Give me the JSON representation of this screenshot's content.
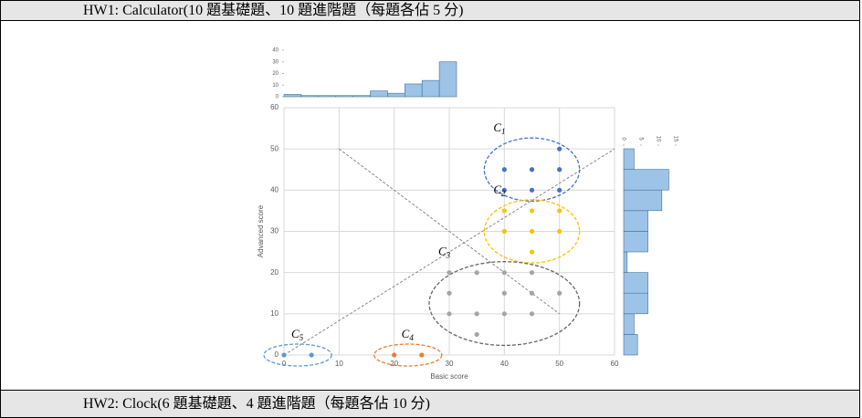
{
  "rows": [
    "HW1: Calculator(10 題基礎題、10 題進階題（每題各佔 5 分)",
    "HW2: Clock(6 題基礎題、4 題進階題（每題各佔 10 分)"
  ],
  "chart_data": {
    "type": "scatter",
    "xlabel": "Basic score",
    "ylabel": "Advanced score",
    "xlim": [
      0,
      60
    ],
    "ylim": [
      0,
      60
    ],
    "xticks": [
      0,
      10,
      20,
      30,
      40,
      50,
      60
    ],
    "yticks": [
      0,
      10,
      20,
      30,
      40,
      50,
      60
    ],
    "grid": true,
    "clusters": [
      {
        "name": "C",
        "sub": "1",
        "color": "#4472c4",
        "points": [
          [
            50,
            50
          ],
          [
            40,
            45
          ],
          [
            45,
            45
          ],
          [
            50,
            45
          ],
          [
            40,
            40
          ],
          [
            45,
            40
          ],
          [
            50,
            40
          ]
        ]
      },
      {
        "name": "C",
        "sub": "2",
        "color": "#ffc000",
        "points": [
          [
            40,
            35
          ],
          [
            45,
            35
          ],
          [
            50,
            35
          ],
          [
            40,
            30
          ],
          [
            45,
            30
          ],
          [
            50,
            30
          ],
          [
            45,
            25
          ]
        ]
      },
      {
        "name": "C",
        "sub": "3",
        "color": "#a5a5a5",
        "points": [
          [
            30,
            20
          ],
          [
            35,
            20
          ],
          [
            40,
            20
          ],
          [
            45,
            20
          ],
          [
            30,
            15
          ],
          [
            40,
            15
          ],
          [
            45,
            15
          ],
          [
            50,
            15
          ],
          [
            30,
            10
          ],
          [
            35,
            10
          ],
          [
            40,
            10
          ],
          [
            45,
            10
          ],
          [
            35,
            5
          ]
        ]
      },
      {
        "name": "C",
        "sub": "4",
        "color": "#ed7d31",
        "points": [
          [
            20,
            0
          ],
          [
            25,
            0
          ]
        ]
      },
      {
        "name": "C",
        "sub": "5",
        "color": "#5b9bd5",
        "points": [
          [
            0,
            0
          ],
          [
            5,
            0
          ]
        ]
      }
    ],
    "top_hist": {
      "bins": [
        0,
        5,
        10,
        15,
        20,
        25,
        30,
        35,
        40,
        45,
        50
      ],
      "counts": [
        2,
        1,
        1,
        1,
        1,
        5,
        3,
        11,
        14,
        30
      ],
      "ylim": [
        0,
        40
      ],
      "yticks": [
        0,
        10,
        20,
        30,
        40
      ]
    },
    "right_hist": {
      "bins": [
        0,
        5,
        10,
        15,
        20,
        25,
        30,
        35,
        40,
        45,
        50
      ],
      "counts": [
        4,
        3,
        7,
        7,
        1,
        7,
        7,
        11,
        13,
        3
      ],
      "xlim": [
        0,
        15
      ],
      "xticks": [
        0,
        5,
        10,
        15
      ]
    }
  }
}
